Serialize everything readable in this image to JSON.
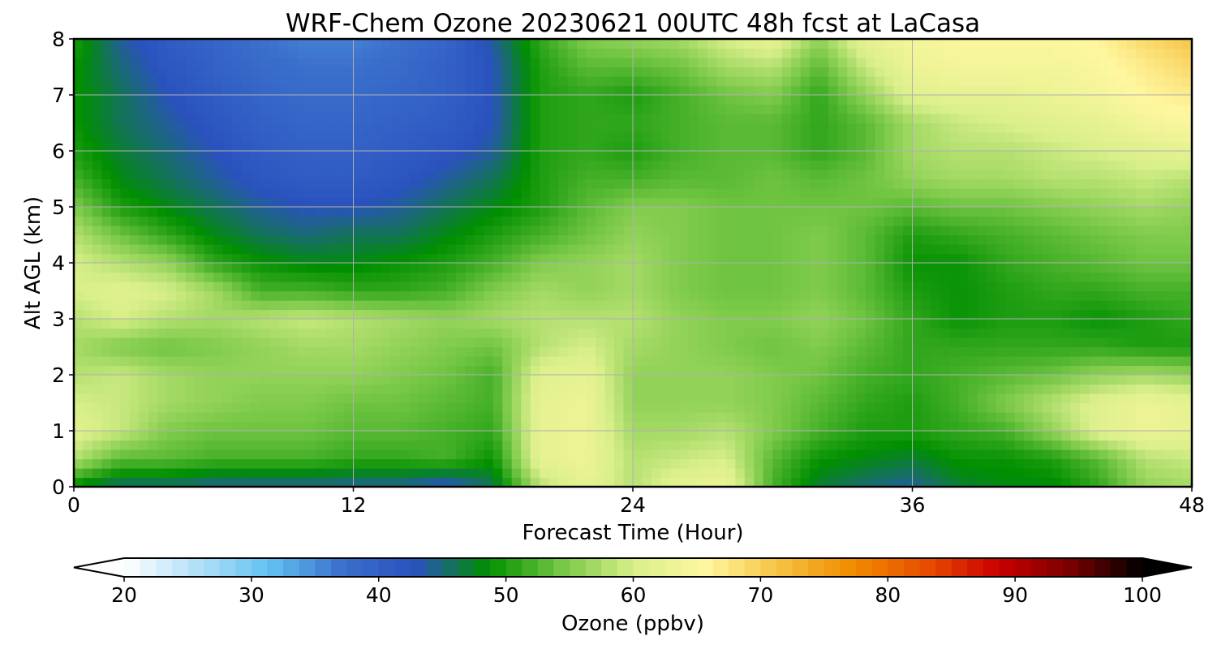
{
  "chart_data": {
    "type": "heatmap",
    "title": "WRF-Chem Ozone  20230621 00UTC 48h fcst at LaCasa",
    "xlabel": "Forecast Time (Hour)",
    "ylabel": "Alt AGL (km)",
    "xlim": [
      0,
      48
    ],
    "ylim": [
      0,
      8
    ],
    "x_ticks": [
      0,
      12,
      24,
      36,
      48
    ],
    "y_ticks": [
      0,
      1,
      2,
      3,
      4,
      5,
      6,
      7,
      8
    ],
    "grid": true,
    "colorbar": {
      "label": "Ozone  (ppbv)",
      "orientation": "horizontal",
      "range": [
        20,
        100
      ],
      "ticks": [
        20,
        30,
        40,
        50,
        60,
        70,
        80,
        90,
        100
      ],
      "extend": "both",
      "colors": [
        "#ffffff",
        "#b3e0f7",
        "#62c0f0",
        "#3b6fcc",
        "#2a52be",
        "#008f00",
        "#74c644",
        "#d9ef8a",
        "#fff7a0",
        "#f5c242",
        "#f08c00",
        "#e85000",
        "#cc0000",
        "#7a0000",
        "#000000"
      ]
    },
    "heat_times": [
      0,
      2,
      4,
      6,
      8,
      10,
      12,
      14,
      16,
      18,
      20,
      22,
      24,
      26,
      28,
      30,
      32,
      34,
      36,
      38,
      40,
      42,
      44,
      46,
      48
    ],
    "heat_alts": [
      0,
      0.5,
      1,
      1.5,
      2,
      2.5,
      3,
      3.5,
      4,
      4.5,
      5,
      5.5,
      6,
      6.5,
      7,
      7.5,
      8
    ],
    "ozone_ppbv": [
      [
        48,
        45,
        45,
        44,
        44,
        44,
        44,
        44,
        42,
        46,
        58,
        62,
        58,
        62,
        63,
        52,
        47,
        45,
        44,
        47,
        48,
        48,
        51,
        56,
        57
      ],
      [
        58,
        53,
        53,
        52,
        52,
        52,
        51,
        51,
        52,
        49,
        62,
        63,
        58,
        59,
        60,
        53,
        49,
        48,
        47,
        49,
        49,
        50,
        53,
        58,
        59
      ],
      [
        61,
        59,
        55,
        54,
        54,
        54,
        53,
        53,
        52,
        51,
        62,
        63,
        57,
        57,
        58,
        55,
        52,
        50,
        50,
        51,
        52,
        56,
        61,
        63,
        62
      ],
      [
        60,
        59,
        57,
        56,
        55,
        55,
        54,
        54,
        53,
        52,
        62,
        63,
        56,
        56,
        56,
        55,
        53,
        51,
        50,
        52,
        55,
        58,
        61,
        63,
        62
      ],
      [
        58,
        59,
        57,
        56,
        56,
        56,
        56,
        55,
        54,
        52,
        61,
        62,
        56,
        56,
        56,
        55,
        54,
        52,
        51,
        52,
        53,
        54,
        56,
        57,
        56
      ],
      [
        57,
        55,
        54,
        55,
        56,
        57,
        57,
        56,
        55,
        54,
        58,
        60,
        57,
        56,
        55,
        54,
        55,
        53,
        51,
        51,
        51,
        51,
        51,
        50,
        50
      ],
      [
        58,
        60,
        58,
        57,
        58,
        59,
        58,
        57,
        56,
        57,
        58,
        58,
        58,
        56,
        55,
        55,
        56,
        54,
        51,
        49,
        50,
        50,
        49,
        50,
        51
      ],
      [
        60,
        61,
        60,
        57,
        52,
        52,
        51,
        51,
        52,
        55,
        57,
        56,
        57,
        55,
        54,
        54,
        55,
        53,
        50,
        49,
        50,
        51,
        51,
        52,
        52
      ],
      [
        60,
        58,
        56,
        51,
        49,
        48,
        48,
        49,
        50,
        52,
        55,
        56,
        57,
        55,
        54,
        54,
        55,
        53,
        49,
        49,
        51,
        52,
        53,
        54,
        54
      ],
      [
        58,
        54,
        51,
        48,
        46,
        45,
        46,
        46,
        48,
        50,
        52,
        54,
        56,
        55,
        54,
        54,
        55,
        53,
        50,
        51,
        52,
        53,
        54,
        55,
        55
      ],
      [
        55,
        50,
        48,
        46,
        44,
        43,
        43,
        44,
        46,
        48,
        50,
        53,
        55,
        55,
        54,
        54,
        54,
        54,
        53,
        54,
        54,
        55,
        56,
        57,
        56
      ],
      [
        52,
        48,
        46,
        44,
        42,
        41,
        41,
        42,
        44,
        46,
        50,
        52,
        52,
        53,
        53,
        54,
        53,
        54,
        56,
        57,
        57,
        58,
        58,
        59,
        58
      ],
      [
        50,
        47,
        45,
        43,
        41,
        40,
        40,
        41,
        42,
        44,
        50,
        51,
        50,
        52,
        53,
        53,
        51,
        53,
        57,
        58,
        58,
        59,
        60,
        61,
        62
      ],
      [
        49,
        46,
        44,
        42,
        40,
        39,
        39,
        40,
        41,
        43,
        50,
        51,
        51,
        52,
        53,
        53,
        51,
        53,
        57,
        59,
        60,
        61,
        62,
        64,
        65
      ],
      [
        49,
        46,
        43,
        41,
        39,
        38,
        38,
        39,
        40,
        43,
        50,
        51,
        50,
        52,
        54,
        55,
        51,
        56,
        61,
        62,
        62,
        63,
        64,
        66,
        67
      ],
      [
        49,
        45,
        42,
        40,
        38,
        37,
        37,
        38,
        40,
        43,
        50,
        53,
        53,
        54,
        57,
        58,
        53,
        59,
        63,
        64,
        64,
        64,
        65,
        67,
        69
      ],
      [
        50,
        44,
        41,
        39,
        37,
        36,
        36,
        37,
        39,
        44,
        51,
        55,
        56,
        57,
        60,
        62,
        56,
        62,
        64,
        65,
        65,
        65,
        66,
        69,
        71
      ]
    ]
  }
}
